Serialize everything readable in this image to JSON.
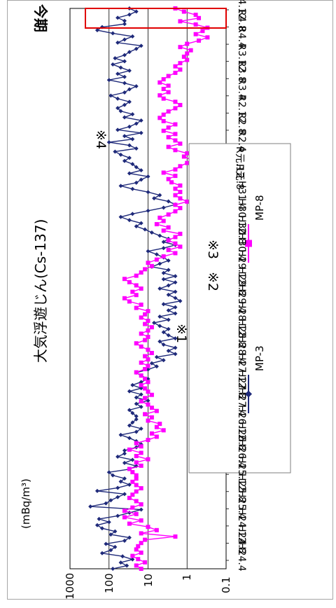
{
  "chart_data": {
    "type": "line",
    "title": "大気浮遊じん(Cs-137)",
    "ylabel": "(mBq/m³)",
    "yscale": "log",
    "ylim": [
      0.1,
      1000
    ],
    "yticks": [
      "0.1",
      "1",
      "10",
      "100",
      "1000"
    ],
    "grid": "horizontal",
    "orientation": "rotated-90",
    "legend_position": "bottom",
    "x_tick_labels": [
      "H24.4",
      "H24.8",
      "H24.12",
      "H25.4",
      "H25.8",
      "H25.12",
      "H26.4",
      "H26.8",
      "H26.12",
      "H27.4",
      "H27.8",
      "H27.12",
      "H28.4",
      "H28.8",
      "H28.12",
      "H29.4",
      "H29.8",
      "H29.12",
      "H30.4",
      "H30.8",
      "H30.12",
      "H31.4",
      "R元.8",
      "R元.12",
      "R2.4",
      "R2.8",
      "R2.12",
      "R3.4",
      "R3.8",
      "R3.12",
      "R4.4",
      "R4.8",
      "R4.12"
    ],
    "annotations": [
      "※1",
      "※2",
      "※3",
      "※4",
      "今期"
    ],
    "highlight": "今期 (R4.12 region)",
    "series": [
      {
        "name": "MP-3",
        "color": "#1f2a7a",
        "marker": "diamond",
        "values": [
          80,
          35,
          50,
          25,
          45,
          150,
          90,
          70,
          120,
          40,
          30,
          90,
          70,
          150,
          200,
          100,
          180,
          60,
          30,
          15,
          300,
          120,
          90,
          60,
          40,
          200,
          60,
          30,
          50,
          40,
          80,
          100,
          30,
          20,
          40,
          25,
          60,
          40,
          40,
          20,
          15,
          20,
          30,
          50,
          20,
          15,
          30,
          25,
          20,
          20,
          25,
          30,
          15,
          20,
          10,
          20,
          15,
          30,
          15,
          25,
          15,
          10,
          15,
          20,
          10,
          6,
          8,
          4,
          6,
          2,
          3,
          2,
          4,
          5,
          2,
          3,
          4,
          3,
          5,
          7,
          3,
          5,
          2,
          3,
          2,
          4,
          1.5,
          2,
          3,
          2,
          5,
          3,
          2,
          4,
          2,
          4,
          3,
          8,
          5,
          3,
          4,
          6,
          10,
          4,
          2,
          4,
          3,
          5,
          8,
          12,
          20,
          15,
          30,
          50,
          25,
          10,
          4,
          2,
          3,
          7,
          5,
          10,
          25,
          50,
          20,
          15,
          10,
          30,
          15,
          20,
          25,
          40,
          30,
          50,
          70,
          20,
          30,
          100,
          25,
          40,
          15,
          60,
          30,
          20,
          15,
          40,
          25,
          50,
          60,
          40,
          30,
          60,
          90,
          40,
          30,
          20,
          40,
          100,
          40,
          60,
          30,
          50,
          80,
          40,
          70,
          40,
          30,
          20,
          15,
          60,
          40,
          25,
          80,
          200,
          150,
          40,
          40,
          60,
          30,
          20,
          30
        ],
        "categories_note": "values plotted in order along the time axis from H24.4 to R4.12"
      },
      {
        "name": "MP-8",
        "color": "#ff00ff",
        "marker": "square",
        "values": [
          15,
          20,
          12,
          18,
          25,
          15,
          20,
          18,
          15,
          12,
          2,
          15,
          6,
          10,
          30,
          15,
          40,
          20,
          40,
          25,
          15,
          20,
          30,
          25,
          20,
          15,
          20,
          25,
          20,
          20,
          25,
          30,
          15,
          20,
          10,
          20,
          15,
          30,
          15,
          20,
          10,
          6,
          8,
          4,
          6,
          5,
          10,
          8,
          12,
          6,
          8,
          10,
          15,
          12,
          8,
          10,
          12,
          15,
          10,
          12,
          15,
          20,
          12,
          10,
          15,
          10,
          12,
          8,
          10,
          15,
          20,
          12,
          10,
          15,
          10,
          8,
          12,
          10,
          15,
          12,
          10,
          20,
          15,
          30,
          40,
          20,
          25,
          15,
          20,
          30,
          40,
          20,
          15,
          12,
          8,
          10,
          6,
          4,
          2,
          3,
          1.5,
          2,
          3,
          2,
          1.5,
          4,
          3,
          6,
          4,
          5,
          3,
          2,
          1.5,
          2,
          1,
          1.5,
          2,
          1.5,
          2,
          1.5,
          2.5,
          3,
          2,
          4,
          2,
          1.5,
          1,
          0.8,
          1.2,
          1,
          2,
          3,
          1.5,
          2,
          3,
          2,
          4,
          3,
          2,
          4,
          5,
          4,
          3,
          2,
          1.5,
          2,
          4,
          5,
          3,
          4,
          3,
          5,
          4,
          3,
          2,
          1.5,
          2,
          1.5,
          1,
          1.2,
          1,
          0.8,
          1.5,
          1,
          0.5,
          0.3,
          0.6,
          0.4,
          0.3,
          0.6,
          1.5,
          0.5,
          0.6,
          1.2,
          2
        ],
        "categories_note": "values plotted in order along the time axis from H24.4 to R4.12"
      }
    ]
  },
  "legend": {
    "items": [
      {
        "label": "MP-3",
        "color": "#1f2a7a",
        "marker": "diamond"
      },
      {
        "label": "MP-8",
        "color": "#ff00ff",
        "marker": "square"
      }
    ]
  }
}
